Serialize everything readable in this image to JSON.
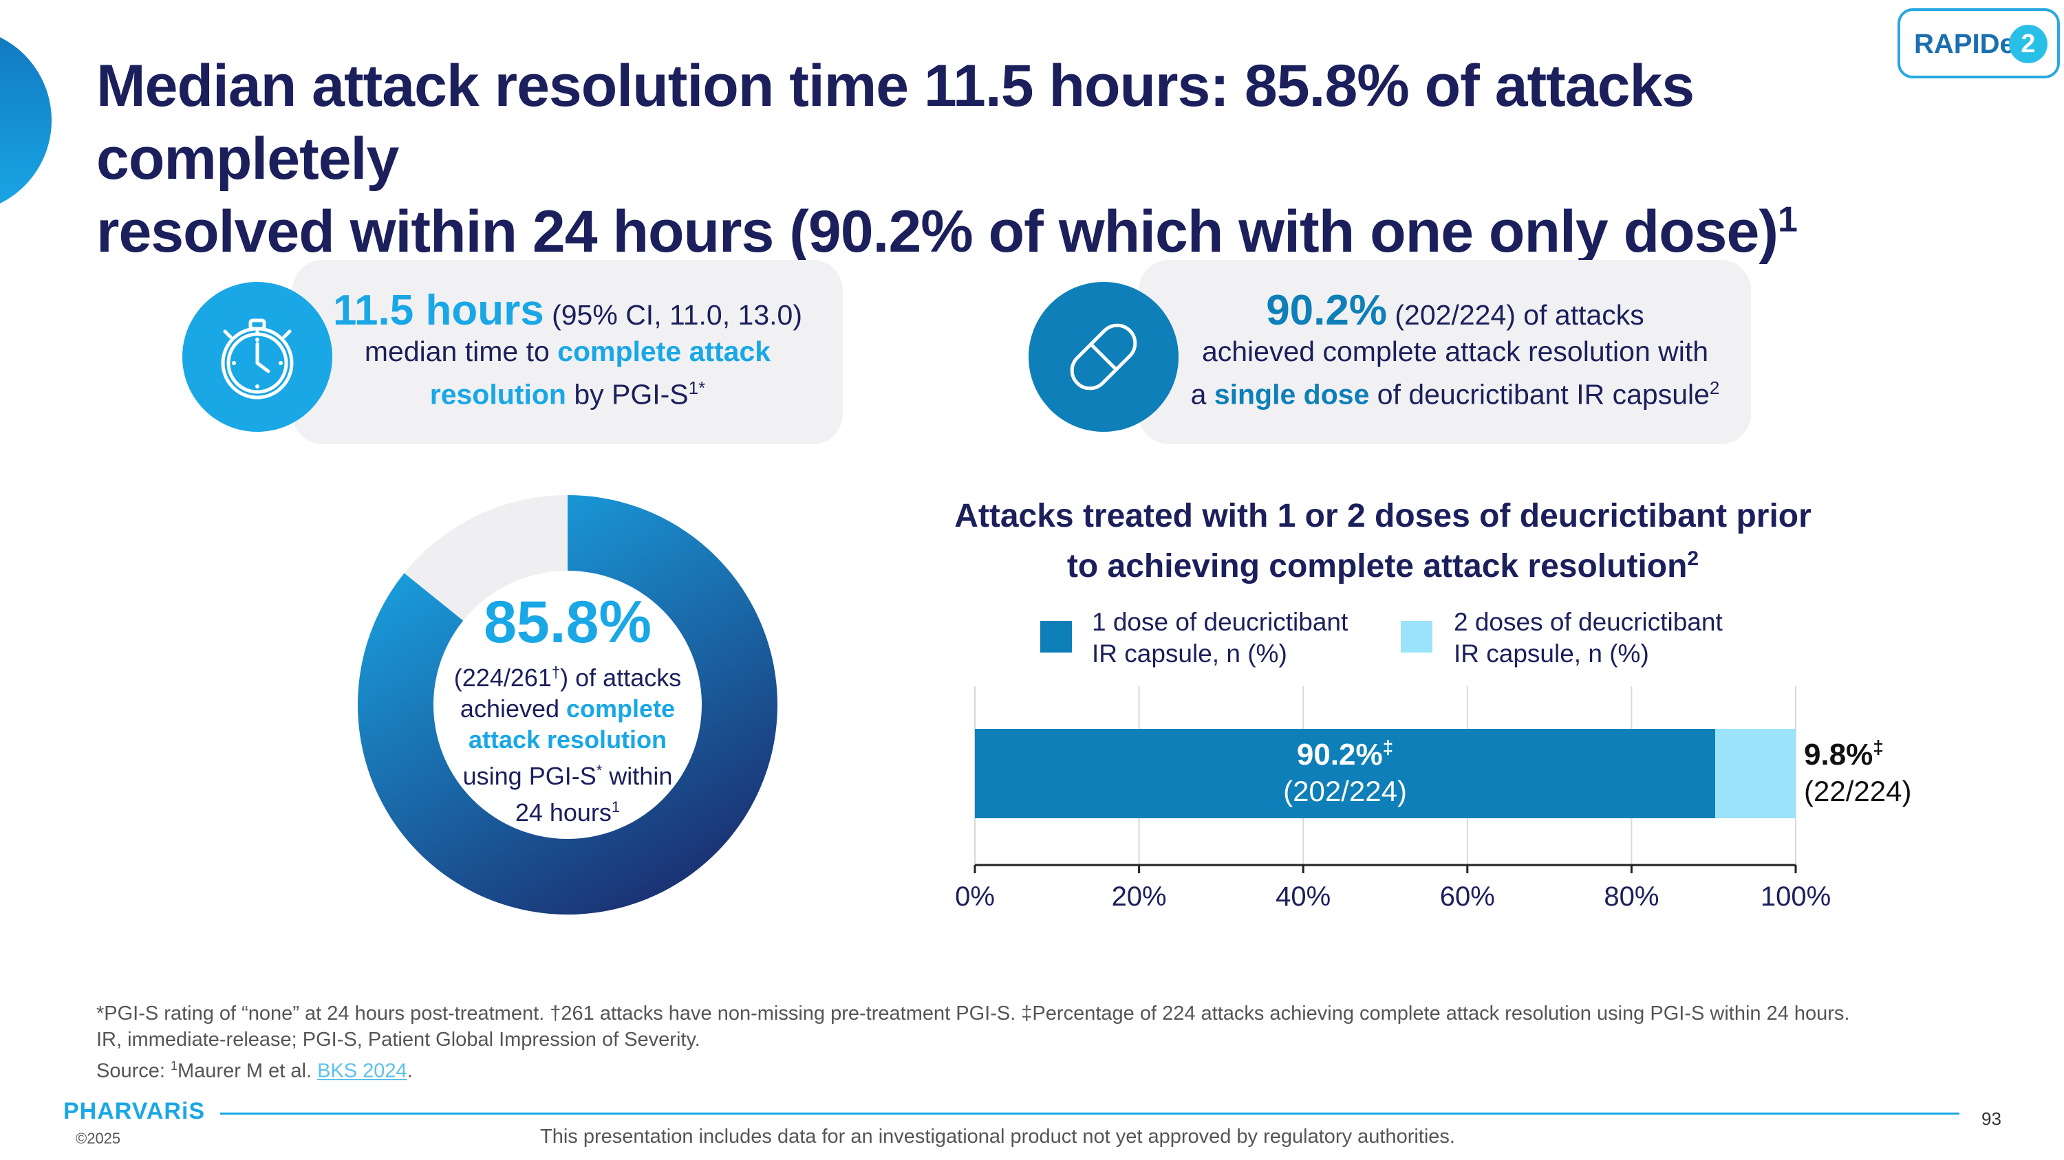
{
  "title": {
    "line1": "Median attack resolution time 11.5 hours: 85.8% of attacks completely",
    "line2": "resolved within 24 hours (90.2% of which with one only dose)",
    "sup": "1"
  },
  "logo": {
    "text": "RAPIDe",
    "num": "2"
  },
  "card1": {
    "icon": "stopwatch-icon",
    "value": "11.5 hours",
    "ci": " (95% CI, 11.0, 13.0)",
    "line2_a": "median time to ",
    "line2_hl": "complete attack",
    "line3_hl": "resolution",
    "line3_b": " by PGI-S",
    "line3_sup": "1*"
  },
  "card2": {
    "icon": "capsule-icon",
    "value": "90.2%",
    "rest": " (202/224) of attacks",
    "line2": "achieved complete attack resolution with",
    "line3_a": "a ",
    "line3_hl": "single dose",
    "line3_b": " of deucrictibant IR capsule",
    "line3_sup": "2"
  },
  "donut": {
    "pct": "85.8%",
    "line1_a": "(224/261",
    "line1_sup": "†",
    "line1_b": ") of attacks",
    "line2_a": "achieved ",
    "line2_hl": "complete",
    "line3_hl": "attack resolution",
    "line4_a": "using PGI-S",
    "line4_sup": "*",
    "line4_b": " within",
    "line5": "24 hours",
    "line5_sup": "1"
  },
  "colors": {
    "dark_blue": "#1b1f5b",
    "accent": "#19a7e6",
    "bar_dark": "#0e7fb8",
    "bar_light": "#9be3fb",
    "donut_rest": "#efeff1"
  },
  "chart_data": [
    {
      "type": "pie",
      "values": [
        85.8,
        14.2
      ],
      "unit": "%"
    },
    {
      "type": "bar",
      "orientation": "horizontal",
      "stacked": true,
      "title": "Attacks treated with 1 or 2 doses of deucrictibant prior to achieving complete attack resolution",
      "title_sup": "2",
      "title_line1": "Attacks treated with 1 or 2 doses of deucrictibant prior",
      "title_line2": "to achieving complete attack resolution",
      "series": [
        {
          "name": "1 dose of deucrictibant IR capsule, n (%)",
          "name_line1": "1 dose of deucrictibant",
          "name_line2": "IR capsule, n (%)",
          "value": 90.2,
          "label": "90.2%",
          "label_sup": "‡",
          "sublabel": "(202/224)"
        },
        {
          "name": "2 doses of deucrictibant IR capsule, n (%)",
          "name_line1": "2 doses of deucrictibant",
          "name_line2": "IR capsule, n (%)",
          "value": 9.8,
          "label": "9.8%",
          "label_sup": "‡",
          "sublabel": "(22/224)"
        }
      ],
      "xlim": [
        0,
        100
      ],
      "xticks": [
        "0%",
        "20%",
        "40%",
        "60%",
        "80%",
        "100%"
      ],
      "grid": true,
      "legend_position": "top"
    }
  ],
  "footnotes": {
    "line1": "*PGI-S rating of “none” at 24 hours post-treatment. †261 attacks have non-missing pre-treatment PGI-S. ‡Percentage of 224 attacks achieving complete attack resolution using PGI-S within 24 hours.",
    "line2": "IR, immediate-release; PGI-S, Patient Global Impression of Severity.",
    "source_a": "Source: ",
    "source_sup": "1",
    "source_b": "Maurer M et al. ",
    "source_link": "BKS 2024",
    "source_end": "."
  },
  "footer": {
    "logo": "PHARVARiS",
    "copyright": "©2025",
    "disclaimer": "This presentation includes data for an investigational product not yet approved by regulatory authorities.",
    "page": "93"
  }
}
